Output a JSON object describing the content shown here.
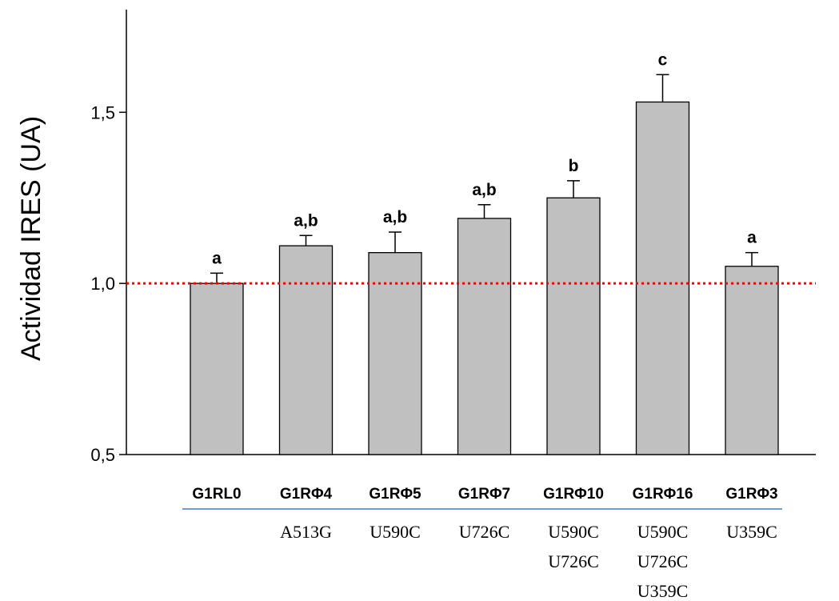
{
  "chart_data": {
    "type": "bar",
    "title": "",
    "ylabel": "Actividad IRES (UA)",
    "xlabel": "",
    "ylim": [
      0.5,
      1.8
    ],
    "yticks": [
      {
        "value": 0.5,
        "label": "0,5"
      },
      {
        "value": 1.0,
        "label": "1,0"
      },
      {
        "value": 1.5,
        "label": "1,5"
      }
    ],
    "reference_line": {
      "value": 1.0,
      "color": "#ff0000",
      "style": "dotted"
    },
    "bar_color": "#c0c0c0",
    "categories": [
      "G1RL0",
      "G1RΦ4",
      "G1RΦ5",
      "G1RΦ7",
      "G1RΦ10",
      "G1RΦ16",
      "G1RΦ3"
    ],
    "values": [
      1.0,
      1.11,
      1.09,
      1.19,
      1.25,
      1.53,
      1.05
    ],
    "errors": [
      0.03,
      0.03,
      0.06,
      0.04,
      0.05,
      0.08,
      0.04
    ],
    "significance": [
      "a",
      "a,b",
      "a,b",
      "a,b",
      "b",
      "c",
      "a"
    ],
    "mutations": [
      [],
      [
        "A513G"
      ],
      [
        "U590C"
      ],
      [
        "U726C"
      ],
      [
        "U590C",
        "U726C"
      ],
      [
        "U590C",
        "U726C",
        "U359C"
      ],
      [
        "U359C"
      ]
    ],
    "grid": false
  }
}
